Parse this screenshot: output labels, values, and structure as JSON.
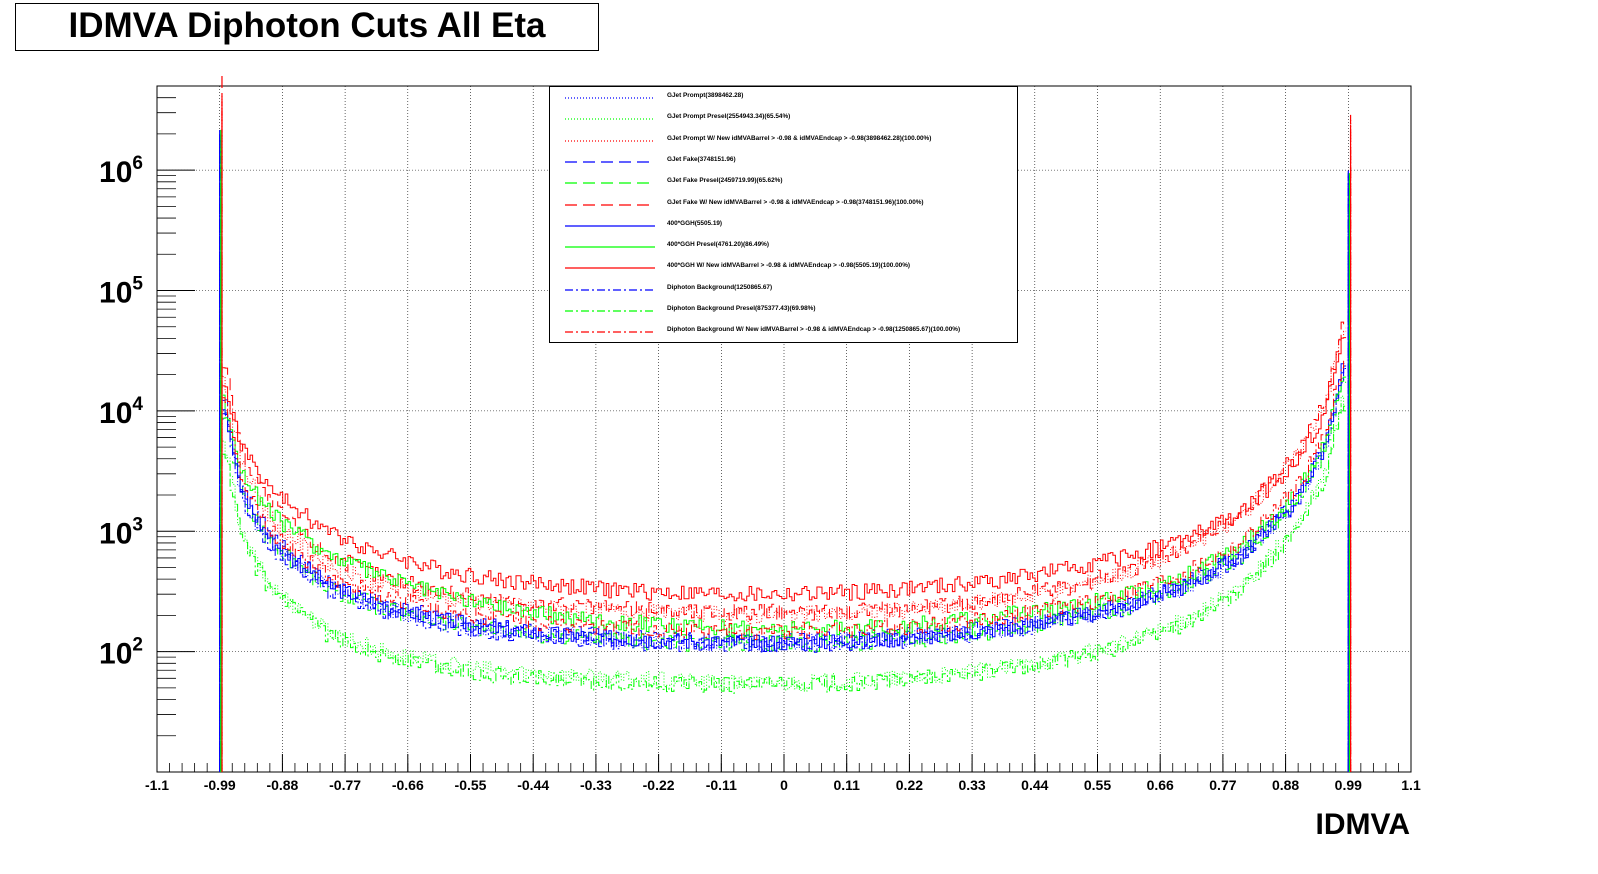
{
  "chart_data": {
    "type": "line",
    "title": "IDMVA Diphoton Cuts All Eta",
    "xlabel": "IDMVA",
    "ylabel": "",
    "xlim": [
      -1.1,
      1.1
    ],
    "ylim": [
      10,
      5000000
    ],
    "log_y": true,
    "grid": true,
    "legend_position": "top-center",
    "x_ticks": [
      "-1.1",
      "-0.99",
      "-0.88",
      "-0.77",
      "-0.66",
      "-0.55",
      "-0.44",
      "-0.33",
      "-0.22",
      "-0.11",
      "0",
      "0.11",
      "0.22",
      "0.33",
      "0.44",
      "0.55",
      "0.66",
      "0.77",
      "0.88",
      "0.99",
      "1.1"
    ],
    "y_ticks": [
      {
        "base": "10",
        "exp": "2"
      },
      {
        "base": "10",
        "exp": "3"
      },
      {
        "base": "10",
        "exp": "4"
      },
      {
        "base": "10",
        "exp": "5"
      },
      {
        "base": "10",
        "exp": "6"
      }
    ],
    "x": [
      -0.98,
      -0.95,
      -0.9,
      -0.8,
      -0.7,
      -0.6,
      -0.5,
      -0.4,
      -0.3,
      -0.2,
      -0.1,
      0,
      0.1,
      0.2,
      0.3,
      0.4,
      0.5,
      0.6,
      0.7,
      0.8,
      0.9,
      0.95,
      0.98
    ],
    "series": [
      {
        "name": "GJet Prompt(3898462.28)",
        "color": "#0000ff",
        "dash": "1,2",
        "values": [
          10000,
          1800,
          800,
          350,
          230,
          180,
          150,
          140,
          130,
          125,
          120,
          120,
          125,
          130,
          140,
          160,
          190,
          240,
          340,
          600,
          1800,
          5000,
          20000
        ]
      },
      {
        "name": "GJet Prompt Presel(2554943.34)(65.54%)",
        "color": "#00ff00",
        "dash": "1,2",
        "values": [
          5000,
          900,
          350,
          150,
          100,
          80,
          70,
          65,
          60,
          58,
          55,
          55,
          57,
          60,
          65,
          75,
          90,
          120,
          180,
          330,
          1100,
          3000,
          12000
        ]
      },
      {
        "name": "GJet Prompt W/ New idMVABarrel > -0.98 & idMVAEndcap > -0.98(3898462.28)(100.00%)",
        "color": "#ff0000",
        "dash": "1,2",
        "values": [
          18000,
          3500,
          1300,
          520,
          360,
          290,
          250,
          230,
          220,
          210,
          205,
          205,
          210,
          220,
          240,
          280,
          340,
          460,
          700,
          1300,
          4200,
          12000,
          45000
        ]
      },
      {
        "name": "GJet Fake(3748151.96)",
        "color": "#0000ff",
        "dash": "12,6",
        "values": [
          12000,
          2200,
          900,
          380,
          250,
          190,
          160,
          145,
          135,
          128,
          125,
          125,
          128,
          135,
          145,
          165,
          195,
          250,
          360,
          640,
          1900,
          5200,
          22000
        ]
      },
      {
        "name": "GJet Fake Presel(2459719.99)(65.62%)",
        "color": "#00ff00",
        "dash": "12,6",
        "values": [
          9000,
          1900,
          800,
          340,
          230,
          180,
          150,
          135,
          125,
          120,
          118,
          118,
          120,
          125,
          135,
          155,
          185,
          235,
          340,
          600,
          1750,
          4800,
          19000
        ]
      },
      {
        "name": "GJet Fake W/ New idMVABarrel > -0.98 & idMVAEndcap > -0.98(3748151.96)(100.00%)",
        "color": "#ff0000",
        "dash": "12,6",
        "values": [
          25000,
          4500,
          1700,
          640,
          420,
          320,
          270,
          245,
          230,
          220,
          215,
          215,
          220,
          230,
          250,
          290,
          350,
          470,
          720,
          1350,
          4300,
          12500,
          48000
        ]
      },
      {
        "name": "400*GGH(5505.19)",
        "color": "#0000ff",
        "dash": "",
        "values": [
          11000,
          2000,
          850,
          360,
          240,
          185,
          155,
          140,
          130,
          124,
          120,
          120,
          124,
          130,
          140,
          160,
          190,
          245,
          350,
          620,
          1850,
          5100,
          21000
        ]
      },
      {
        "name": "400*GGH Presel(4761.20)(86.49%)",
        "color": "#00ff00",
        "dash": "",
        "values": [
          12000,
          3000,
          1400,
          650,
          420,
          300,
          240,
          200,
          180,
          165,
          158,
          155,
          158,
          165,
          180,
          205,
          240,
          300,
          420,
          720,
          2000,
          5500,
          21000
        ]
      },
      {
        "name": "400*GGH W/ New idMVABarrel > -0.98 & idMVAEndcap > -0.98(5505.19)(100.00%)",
        "color": "#ff0000",
        "dash": "",
        "values": [
          15000,
          5000,
          2200,
          1000,
          650,
          480,
          400,
          360,
          330,
          310,
          300,
          300,
          310,
          330,
          360,
          410,
          490,
          620,
          850,
          1400,
          3800,
          10000,
          40000
        ]
      },
      {
        "name": "Diphoton Background(1250865.67)",
        "color": "#0000ff",
        "dash": "8,3,2,3",
        "values": [
          10000,
          1700,
          750,
          330,
          220,
          170,
          145,
          132,
          124,
          119,
          116,
          116,
          119,
          125,
          135,
          155,
          185,
          235,
          340,
          600,
          1800,
          5000,
          20000
        ]
      },
      {
        "name": "Diphoton Background Presel(875377.43)(69.98%)",
        "color": "#00ff00",
        "dash": "8,3,2,3",
        "values": [
          4500,
          800,
          320,
          140,
          92,
          74,
          64,
          59,
          56,
          54,
          53,
          53,
          55,
          58,
          63,
          72,
          88,
          115,
          170,
          310,
          1000,
          2800,
          11000
        ]
      },
      {
        "name": "Diphoton Background W/ New idMVABarrel > -0.98 & idMVAEndcap > -0.98(1250865.67)(100.00%)",
        "color": "#ff0000",
        "dash": "8,3,2,3",
        "values": [
          14000,
          2400,
          1000,
          430,
          290,
          225,
          190,
          172,
          162,
          155,
          150,
          150,
          155,
          162,
          175,
          200,
          240,
          305,
          440,
          780,
          2300,
          6400,
          26000
        ]
      }
    ]
  }
}
